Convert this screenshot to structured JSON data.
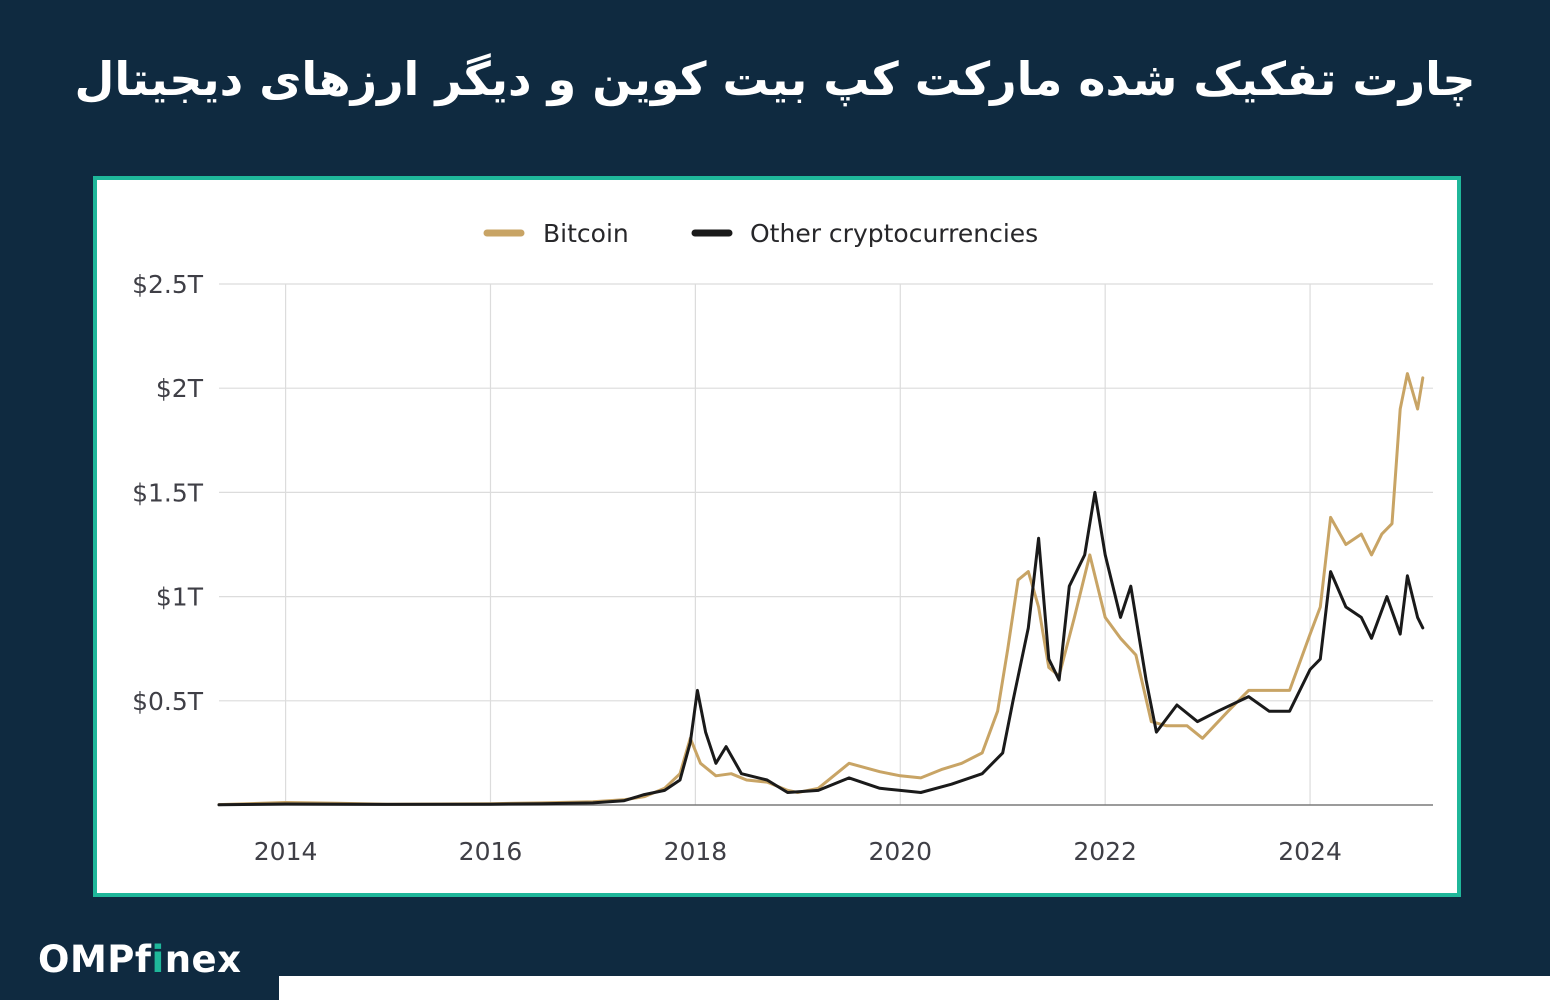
{
  "title": "چارت تفکیک شده مارکت کپ بیت کوین و دیگر ارزهای دیجیتال",
  "logo": {
    "part1": "OMPf",
    "accent": "i",
    "part2": "nex"
  },
  "colors": {
    "background": "#0f2a40",
    "frame": "#1fb79a",
    "bitcoin": "#c8a465",
    "other": "#1a1a1a",
    "grid": "#dcdcdc"
  },
  "chart_data": {
    "type": "line",
    "title": "",
    "xlabel": "",
    "ylabel": "",
    "xlim": [
      2013.35,
      2025.2
    ],
    "ylim": [
      0,
      2.5
    ],
    "x_ticks": [
      2014,
      2016,
      2018,
      2020,
      2022,
      2024
    ],
    "x_tick_labels": [
      "2014",
      "2016",
      "2018",
      "2020",
      "2022",
      "2024"
    ],
    "y_ticks": [
      0.5,
      1,
      1.5,
      2,
      2.5
    ],
    "y_tick_labels": [
      "$0.5T",
      "$1T",
      "$1.5T",
      "$2T",
      "$2.5T"
    ],
    "grid": true,
    "legend_position": "top-center",
    "series": [
      {
        "name": "Bitcoin",
        "color": "#c8a465",
        "points": [
          [
            2013.35,
            0.002
          ],
          [
            2014.0,
            0.012
          ],
          [
            2014.5,
            0.008
          ],
          [
            2015.0,
            0.004
          ],
          [
            2016.0,
            0.006
          ],
          [
            2016.5,
            0.01
          ],
          [
            2017.0,
            0.016
          ],
          [
            2017.3,
            0.025
          ],
          [
            2017.5,
            0.04
          ],
          [
            2017.7,
            0.08
          ],
          [
            2017.85,
            0.15
          ],
          [
            2017.95,
            0.32
          ],
          [
            2018.05,
            0.2
          ],
          [
            2018.2,
            0.14
          ],
          [
            2018.35,
            0.15
          ],
          [
            2018.5,
            0.12
          ],
          [
            2018.7,
            0.11
          ],
          [
            2018.9,
            0.07
          ],
          [
            2019.0,
            0.06
          ],
          [
            2019.2,
            0.08
          ],
          [
            2019.5,
            0.2
          ],
          [
            2019.8,
            0.16
          ],
          [
            2020.0,
            0.14
          ],
          [
            2020.2,
            0.13
          ],
          [
            2020.4,
            0.17
          ],
          [
            2020.6,
            0.2
          ],
          [
            2020.8,
            0.25
          ],
          [
            2020.95,
            0.45
          ],
          [
            2021.05,
            0.75
          ],
          [
            2021.15,
            1.08
          ],
          [
            2021.25,
            1.12
          ],
          [
            2021.35,
            0.95
          ],
          [
            2021.45,
            0.66
          ],
          [
            2021.55,
            0.62
          ],
          [
            2021.7,
            0.9
          ],
          [
            2021.85,
            1.2
          ],
          [
            2022.0,
            0.9
          ],
          [
            2022.15,
            0.8
          ],
          [
            2022.3,
            0.72
          ],
          [
            2022.45,
            0.4
          ],
          [
            2022.6,
            0.38
          ],
          [
            2022.8,
            0.38
          ],
          [
            2022.95,
            0.32
          ],
          [
            2023.2,
            0.45
          ],
          [
            2023.4,
            0.55
          ],
          [
            2023.6,
            0.55
          ],
          [
            2023.8,
            0.55
          ],
          [
            2024.0,
            0.82
          ],
          [
            2024.1,
            0.95
          ],
          [
            2024.2,
            1.38
          ],
          [
            2024.35,
            1.25
          ],
          [
            2024.5,
            1.3
          ],
          [
            2024.6,
            1.2
          ],
          [
            2024.7,
            1.3
          ],
          [
            2024.8,
            1.35
          ],
          [
            2024.88,
            1.9
          ],
          [
            2024.95,
            2.07
          ],
          [
            2025.05,
            1.9
          ],
          [
            2025.1,
            2.05
          ]
        ]
      },
      {
        "name": "Other cryptocurrencies",
        "color": "#1a1a1a",
        "points": [
          [
            2013.35,
            0.001
          ],
          [
            2014.0,
            0.005
          ],
          [
            2015.0,
            0.003
          ],
          [
            2016.0,
            0.004
          ],
          [
            2016.5,
            0.006
          ],
          [
            2017.0,
            0.01
          ],
          [
            2017.3,
            0.02
          ],
          [
            2017.5,
            0.05
          ],
          [
            2017.7,
            0.07
          ],
          [
            2017.85,
            0.12
          ],
          [
            2017.95,
            0.3
          ],
          [
            2018.02,
            0.55
          ],
          [
            2018.1,
            0.35
          ],
          [
            2018.2,
            0.2
          ],
          [
            2018.3,
            0.28
          ],
          [
            2018.45,
            0.15
          ],
          [
            2018.7,
            0.12
          ],
          [
            2018.9,
            0.06
          ],
          [
            2019.2,
            0.07
          ],
          [
            2019.5,
            0.13
          ],
          [
            2019.8,
            0.08
          ],
          [
            2020.0,
            0.07
          ],
          [
            2020.2,
            0.06
          ],
          [
            2020.5,
            0.1
          ],
          [
            2020.8,
            0.15
          ],
          [
            2021.0,
            0.25
          ],
          [
            2021.1,
            0.5
          ],
          [
            2021.25,
            0.85
          ],
          [
            2021.35,
            1.28
          ],
          [
            2021.45,
            0.7
          ],
          [
            2021.55,
            0.6
          ],
          [
            2021.65,
            1.05
          ],
          [
            2021.8,
            1.2
          ],
          [
            2021.9,
            1.5
          ],
          [
            2022.0,
            1.2
          ],
          [
            2022.15,
            0.9
          ],
          [
            2022.25,
            1.05
          ],
          [
            2022.4,
            0.6
          ],
          [
            2022.5,
            0.35
          ],
          [
            2022.7,
            0.48
          ],
          [
            2022.9,
            0.4
          ],
          [
            2023.1,
            0.45
          ],
          [
            2023.4,
            0.52
          ],
          [
            2023.6,
            0.45
          ],
          [
            2023.8,
            0.45
          ],
          [
            2024.0,
            0.65
          ],
          [
            2024.1,
            0.7
          ],
          [
            2024.2,
            1.12
          ],
          [
            2024.35,
            0.95
          ],
          [
            2024.5,
            0.9
          ],
          [
            2024.6,
            0.8
          ],
          [
            2024.75,
            1.0
          ],
          [
            2024.88,
            0.82
          ],
          [
            2024.95,
            1.1
          ],
          [
            2025.05,
            0.9
          ],
          [
            2025.1,
            0.85
          ]
        ]
      }
    ]
  }
}
